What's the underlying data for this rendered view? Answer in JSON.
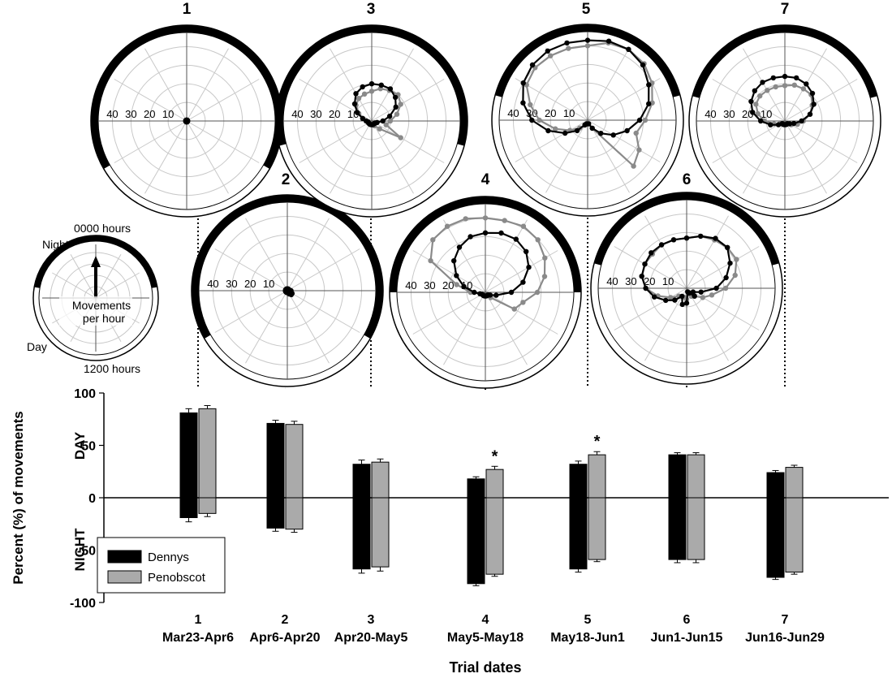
{
  "chart_data": [
    {
      "type": "bar",
      "xlabel": "Trial dates",
      "ylabel": "Percent (%) of movements",
      "ylabel_top": "DAY",
      "ylabel_bottom": "NIGHT",
      "ylim": [
        -100,
        100
      ],
      "yticks": [
        "100",
        "50",
        "0",
        "-50",
        "-100"
      ],
      "categories": [
        "1",
        "2",
        "3",
        "4",
        "5",
        "6",
        "7"
      ],
      "category_dates": [
        "Mar23-Apr6",
        "Apr6-Apr20",
        "Apr20-May5",
        "May5-May18",
        "May18-Jun1",
        "Jun1-Jun15",
        "Jun16-Jun29"
      ],
      "legend_position": "bottom-left",
      "significance_marker": "*",
      "significant_trials": [
        4,
        5
      ],
      "series": [
        {
          "name": "Dennys",
          "color": "#000000",
          "day_values": [
            81,
            71,
            32,
            18,
            32,
            41,
            24
          ],
          "day_error": [
            4,
            3,
            4,
            2,
            3,
            2,
            2
          ],
          "night_values": [
            -19,
            -29,
            -68,
            -82,
            -68,
            -59,
            -76
          ],
          "night_error": [
            4,
            3,
            4,
            2,
            3,
            3,
            2
          ]
        },
        {
          "name": "Penobscot",
          "color": "#aaaaaa",
          "day_values": [
            85,
            70,
            34,
            27,
            41,
            41,
            29
          ],
          "day_error": [
            3,
            3,
            3,
            3,
            3,
            2,
            2
          ],
          "night_values": [
            -15,
            -30,
            -66,
            -73,
            -59,
            -59,
            -71
          ],
          "night_error": [
            3,
            3,
            4,
            2,
            2,
            3,
            2
          ]
        }
      ]
    },
    {
      "type": "polar-line",
      "radial_ticks": [
        "40",
        "30",
        "20",
        "10"
      ],
      "night_arc_color": "#000000",
      "key": {
        "top_label": "0000 hours",
        "bottom_label": "1200 hours",
        "night_label": "Night",
        "day_label": "Day",
        "center_label_1": "Movements",
        "center_label_2": "per hour"
      },
      "plots": [
        {
          "trial": "1",
          "night_span_hours": 16,
          "Dennys": [
            0.5,
            0.5,
            0.5,
            0.5,
            0.5,
            0.5,
            0.5,
            0.5,
            0.5,
            0.5,
            0.5,
            0.5,
            0.5,
            0.5,
            0.5,
            0.5,
            0.5,
            0.5,
            0.5,
            0.5,
            0.5,
            0.5,
            0.5,
            0.5
          ],
          "Penobscot": [
            0.5,
            0.5,
            0.5,
            0.5,
            0.5,
            0.5,
            0.5,
            0.5,
            0.5,
            0.5,
            0.5,
            0.5,
            0.5,
            0.5,
            0.5,
            0.5,
            0.5,
            0.5,
            0.5,
            0.5,
            0.5,
            0.5,
            0.5,
            0.5
          ]
        },
        {
          "trial": "2",
          "night_span_hours": 16,
          "Dennys": [
            1,
            1,
            1,
            1,
            1,
            1,
            2,
            2,
            3,
            3,
            2,
            1,
            1,
            1,
            1,
            1,
            1,
            1,
            1,
            1,
            1,
            1,
            1,
            1
          ],
          "Penobscot": [
            1,
            1,
            1,
            1,
            1,
            1,
            1,
            2,
            2,
            2,
            1,
            1,
            1,
            1,
            1,
            1,
            1,
            1,
            1,
            1,
            1,
            1,
            1,
            1
          ]
        },
        {
          "trial": "3",
          "night_span_hours": 14,
          "Dennys": [
            20,
            20,
            20,
            18,
            15,
            10,
            6,
            3,
            2,
            2,
            2,
            2,
            2,
            2,
            2,
            2,
            2,
            2,
            3,
            5,
            9,
            13,
            17,
            19
          ],
          "Penobscot": [
            16,
            18,
            19,
            20,
            18,
            14,
            10,
            8,
            18,
            6,
            3,
            2,
            2,
            2,
            2,
            2,
            2,
            2,
            3,
            5,
            8,
            12,
            14,
            15
          ]
        },
        {
          "trial": "4",
          "night_span_hours": 12,
          "Dennys": [
            32,
            33,
            33,
            31,
            27,
            21,
            14,
            6,
            3,
            2,
            2,
            2,
            2,
            2,
            2,
            2,
            2,
            3,
            6,
            12,
            18,
            24,
            28,
            31
          ],
          "Penobscot": [
            40,
            40,
            41,
            40,
            37,
            33,
            28,
            21,
            18,
            4,
            2,
            2,
            2,
            2,
            2,
            2,
            2,
            3,
            8,
            16,
            34,
            40,
            41,
            41
          ]
        },
        {
          "trial": "5",
          "night_span_hours": 10,
          "Dennys": [
            43,
            44,
            44,
            42,
            38,
            34,
            28,
            22,
            16,
            10,
            5,
            2,
            2,
            2,
            3,
            8,
            14,
            22,
            30,
            36,
            40,
            42,
            43,
            43
          ],
          "Penobscot": [
            40,
            43,
            44,
            43,
            40,
            36,
            31,
            27,
            32,
            35,
            5,
            2,
            2,
            2,
            3,
            6,
            11,
            18,
            26,
            32,
            38,
            40,
            40,
            40
          ]
        },
        {
          "trial": "6",
          "night_span_hours": 10,
          "Dennys": [
            27,
            29,
            31,
            31,
            27,
            22,
            16,
            8,
            4,
            6,
            3,
            2,
            8,
            9,
            5,
            9,
            13,
            18,
            22,
            25,
            26,
            27,
            27,
            27
          ],
          "Penobscot": [
            27,
            29,
            30,
            31,
            31,
            27,
            21,
            14,
            10,
            6,
            5,
            3,
            6,
            5,
            5,
            6,
            10,
            16,
            22,
            25,
            26,
            26,
            27,
            27
          ]
        },
        {
          "trial": "7",
          "night_span_hours": 10,
          "Dennys": [
            24,
            24,
            23,
            21,
            18,
            14,
            9,
            5,
            3,
            2,
            2,
            2,
            2,
            2,
            2,
            2,
            4,
            8,
            13,
            18,
            21,
            23,
            24,
            24
          ],
          "Penobscot": [
            19,
            20,
            20,
            20,
            17,
            14,
            10,
            7,
            4,
            2,
            2,
            2,
            2,
            2,
            2,
            2,
            3,
            6,
            11,
            15,
            18,
            19,
            19,
            19
          ]
        }
      ]
    }
  ]
}
